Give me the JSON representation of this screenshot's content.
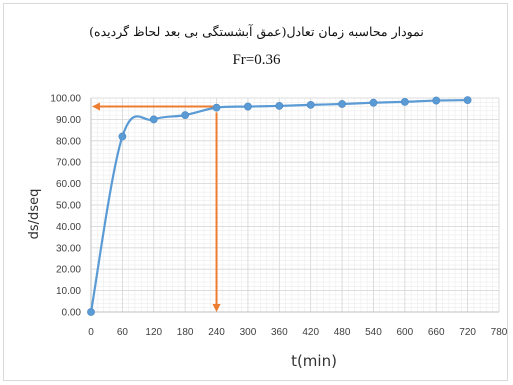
{
  "chart_data": {
    "type": "line",
    "title": "نمودار محاسبه زمان تعادل(عمق آبشستگی بی بعد لحاظ گردیده)",
    "subtitle": "Fr=0.36",
    "xlabel": "t(min)",
    "ylabel": "ds/dseq",
    "xlim": [
      0,
      780
    ],
    "ylim": [
      0,
      100
    ],
    "x_ticks": [
      0,
      60,
      120,
      180,
      240,
      300,
      360,
      420,
      480,
      540,
      600,
      660,
      720,
      780
    ],
    "y_ticks": [
      "0.00",
      "10.00",
      "20.00",
      "30.00",
      "40.00",
      "50.00",
      "60.00",
      "70.00",
      "80.00",
      "90.00",
      "100.00"
    ],
    "grid": true,
    "series": [
      {
        "x": [
          0,
          60,
          120,
          180,
          240,
          300,
          360,
          420,
          480,
          540,
          600,
          660,
          720
        ],
        "values": [
          0,
          82,
          90,
          92,
          95.5,
          96,
          96.3,
          96.8,
          97.2,
          97.8,
          98.2,
          98.8,
          99
        ],
        "color": "#5b9bd5"
      }
    ],
    "annotations": {
      "color": "#ed7d31",
      "horizontal_arrow": {
        "x_from": 0,
        "x_to": 240,
        "y": 96
      },
      "vertical_arrow": {
        "x": 240,
        "y_from": 96,
        "y_to": 0
      }
    }
  }
}
